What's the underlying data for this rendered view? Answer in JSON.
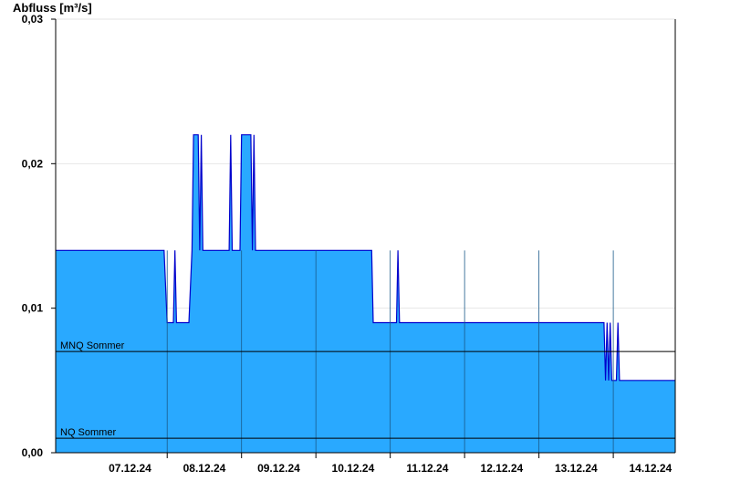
{
  "chart_data": {
    "type": "area",
    "ylabel": "Abfluss [m³/s]",
    "xlabel": "",
    "ylim": [
      0,
      0.03
    ],
    "yticks": [
      {
        "value": 0.0,
        "label": "0,00"
      },
      {
        "value": 0.01,
        "label": "0,01"
      },
      {
        "value": 0.02,
        "label": "0,02"
      },
      {
        "value": 0.03,
        "label": "0,03"
      }
    ],
    "xlim": [
      "2024-12-06 12:00",
      "2024-12-14 20:00"
    ],
    "xticks": [
      {
        "date": "2024-12-07 12:00",
        "label": "07.12.24"
      },
      {
        "date": "2024-12-08 12:00",
        "label": "08.12.24"
      },
      {
        "date": "2024-12-09 12:00",
        "label": "09.12.24"
      },
      {
        "date": "2024-12-10 12:00",
        "label": "10.12.24"
      },
      {
        "date": "2024-12-11 12:00",
        "label": "11.12.24"
      },
      {
        "date": "2024-12-12 12:00",
        "label": "12.12.24"
      },
      {
        "date": "2024-12-13 12:00",
        "label": "13.12.24"
      },
      {
        "date": "2024-12-14 12:00",
        "label": "14.12.24"
      }
    ],
    "day_lines": [
      "2024-12-08 00:00",
      "2024-12-09 00:00",
      "2024-12-10 00:00",
      "2024-12-11 00:00",
      "2024-12-12 00:00",
      "2024-12-13 00:00",
      "2024-12-14 00:00"
    ],
    "grid": true,
    "series": [
      {
        "fill": "#29a9ff",
        "stroke": "#0000cc",
        "points": [
          [
            "2024-12-06 12:00",
            0.014
          ],
          [
            "2024-12-07 23:00",
            0.014
          ],
          [
            "2024-12-08 00:00",
            0.009
          ],
          [
            "2024-12-08 02:00",
            0.009
          ],
          [
            "2024-12-08 02:30",
            0.014
          ],
          [
            "2024-12-08 03:00",
            0.009
          ],
          [
            "2024-12-08 07:00",
            0.009
          ],
          [
            "2024-12-08 08:00",
            0.014
          ],
          [
            "2024-12-08 08:30",
            0.022
          ],
          [
            "2024-12-08 10:00",
            0.022
          ],
          [
            "2024-12-08 10:30",
            0.014
          ],
          [
            "2024-12-08 11:00",
            0.022
          ],
          [
            "2024-12-08 11:30",
            0.014
          ],
          [
            "2024-12-08 20:00",
            0.014
          ],
          [
            "2024-12-08 20:30",
            0.022
          ],
          [
            "2024-12-08 21:00",
            0.014
          ],
          [
            "2024-12-08 23:30",
            0.014
          ],
          [
            "2024-12-09 00:00",
            0.022
          ],
          [
            "2024-12-09 03:00",
            0.022
          ],
          [
            "2024-12-09 03:30",
            0.014
          ],
          [
            "2024-12-09 04:00",
            0.022
          ],
          [
            "2024-12-09 04:30",
            0.014
          ],
          [
            "2024-12-10 18:00",
            0.014
          ],
          [
            "2024-12-10 18:30",
            0.009
          ],
          [
            "2024-12-11 02:00",
            0.009
          ],
          [
            "2024-12-11 02:30",
            0.014
          ],
          [
            "2024-12-11 03:00",
            0.009
          ],
          [
            "2024-12-13 21:00",
            0.009
          ],
          [
            "2024-12-13 21:30",
            0.005
          ],
          [
            "2024-12-13 22:00",
            0.009
          ],
          [
            "2024-12-13 22:30",
            0.005
          ],
          [
            "2024-12-13 23:00",
            0.009
          ],
          [
            "2024-12-13 23:30",
            0.005
          ],
          [
            "2024-12-14 01:00",
            0.005
          ],
          [
            "2024-12-14 01:30",
            0.009
          ],
          [
            "2024-12-14 02:00",
            0.005
          ],
          [
            "2024-12-14 20:00",
            0.005
          ]
        ]
      }
    ],
    "reference_lines": [
      {
        "label": "MNQ Sommer",
        "value": 0.007
      },
      {
        "label": "NQ Sommer",
        "value": 0.001
      }
    ]
  }
}
